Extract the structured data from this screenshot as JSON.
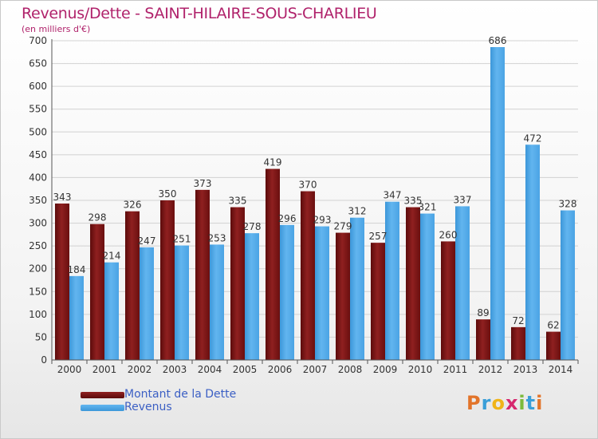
{
  "header": {
    "title": "Revenus/Dette - SAINT-HILAIRE-SOUS-CHARLIEU",
    "subtitle": "(en milliers d'€)"
  },
  "legend": {
    "items": [
      {
        "label": "Montant de la Dette",
        "color": "#7a1212"
      },
      {
        "label": "Revenus",
        "color": "#4ea7e6"
      }
    ]
  },
  "logo": {
    "text": "Proxiti"
  },
  "chart_data": {
    "type": "bar",
    "title": "Revenus/Dette - SAINT-HILAIRE-SOUS-CHARLIEU",
    "ylabel": "(en milliers d'€)",
    "categories": [
      "2000",
      "2001",
      "2002",
      "2003",
      "2004",
      "2005",
      "2006",
      "2007",
      "2008",
      "2009",
      "2010",
      "2011",
      "2012",
      "2013",
      "2014"
    ],
    "series": [
      {
        "name": "Montant de la Dette",
        "color": "#7a1212",
        "values": [
          343,
          298,
          326,
          350,
          373,
          335,
          419,
          370,
          279,
          257,
          335,
          260,
          89,
          72,
          62
        ]
      },
      {
        "name": "Revenus",
        "color": "#4ea7e6",
        "values": [
          184,
          214,
          247,
          251,
          253,
          278,
          296,
          293,
          312,
          347,
          321,
          337,
          686,
          472,
          328
        ]
      }
    ],
    "ylim": [
      0,
      700
    ],
    "yticks": [
      0,
      50,
      100,
      150,
      200,
      250,
      300,
      350,
      400,
      450,
      500,
      550,
      600,
      650,
      700
    ],
    "grid": true,
    "legend_position": "bottom-left"
  }
}
